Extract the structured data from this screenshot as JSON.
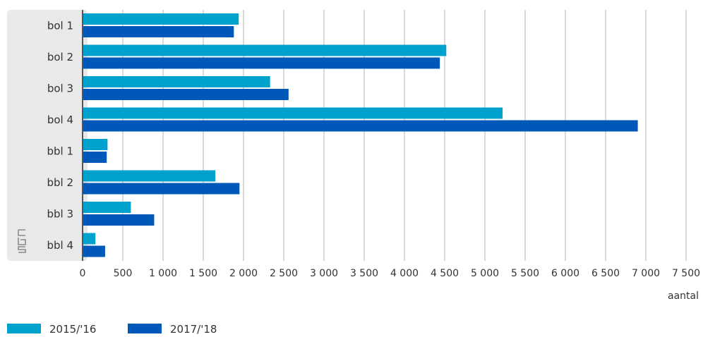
{
  "chart_data": {
    "type": "bar",
    "orientation": "horizontal",
    "categories": [
      "bol 1",
      "bol 2",
      "bol 3",
      "bol 4",
      "bbl 1",
      "bbl 2",
      "bbl 3",
      "bbl 4"
    ],
    "series": [
      {
        "name": "2015/'16",
        "color": "#00a1cd",
        "values": [
          1940,
          4520,
          2330,
          5220,
          310,
          1650,
          600,
          160
        ]
      },
      {
        "name": "2017/'18",
        "color": "#0058b8",
        "values": [
          1880,
          4440,
          2560,
          6900,
          300,
          1950,
          890,
          280
        ]
      }
    ],
    "xticks": [
      0,
      500,
      1000,
      1500,
      2000,
      2500,
      3000,
      3500,
      4000,
      4500,
      5000,
      5500,
      6000,
      6500,
      7000,
      7500
    ],
    "xtick_labels": [
      "0",
      "500",
      "1 000",
      "1 500",
      "2 000",
      "2 500",
      "3 000",
      "3 500",
      "4 000",
      "4 500",
      "5 000",
      "5 500",
      "6 000",
      "6 500",
      "7 000",
      "7 500"
    ],
    "xlim": [
      0,
      7500
    ],
    "xlabel": "aantal",
    "ylabel": "",
    "title": "",
    "grid": true,
    "legend_position": "bottom-left"
  },
  "logo": {
    "name": "cbs-logo",
    "text": "cbs"
  }
}
